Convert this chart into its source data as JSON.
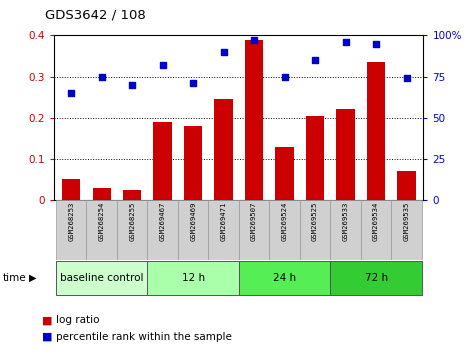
{
  "title": "GDS3642 / 108",
  "categories": [
    "GSM268253",
    "GSM268254",
    "GSM268255",
    "GSM269467",
    "GSM269469",
    "GSM269471",
    "GSM269507",
    "GSM269524",
    "GSM269525",
    "GSM269533",
    "GSM269534",
    "GSM269535"
  ],
  "log_ratio": [
    0.05,
    0.03,
    0.025,
    0.19,
    0.18,
    0.245,
    0.39,
    0.13,
    0.205,
    0.22,
    0.335,
    0.07
  ],
  "percentile_rank": [
    65,
    75,
    70,
    82,
    71,
    90,
    97,
    75,
    85,
    96,
    95,
    74
  ],
  "bar_color": "#cc0000",
  "dot_color": "#0000cc",
  "ylim_left": [
    0,
    0.4
  ],
  "ylim_right": [
    0,
    100
  ],
  "yticks_left": [
    0,
    0.1,
    0.2,
    0.3,
    0.4
  ],
  "ytick_labels_left": [
    "0",
    "0.1",
    "0.2",
    "0.3",
    "0.4"
  ],
  "yticks_right": [
    0,
    25,
    50,
    75,
    100
  ],
  "ytick_labels_right": [
    "0",
    "25",
    "50",
    "75",
    "100%"
  ],
  "groups": [
    {
      "label": "baseline control",
      "start": 0,
      "end": 3,
      "color": "#ccffcc"
    },
    {
      "label": "12 h",
      "start": 3,
      "end": 6,
      "color": "#aaffaa"
    },
    {
      "label": "24 h",
      "start": 6,
      "end": 9,
      "color": "#55ee55"
    },
    {
      "label": "72 h",
      "start": 9,
      "end": 12,
      "color": "#33cc33"
    }
  ],
  "time_label": "time",
  "legend_log_ratio": "log ratio",
  "legend_percentile": "percentile rank within the sample",
  "tick_label_color_left": "#cc0000",
  "tick_label_color_right": "#0000cc",
  "xlabel_bg_color": "#d0d0d0",
  "xlabel_border_color": "#999999"
}
